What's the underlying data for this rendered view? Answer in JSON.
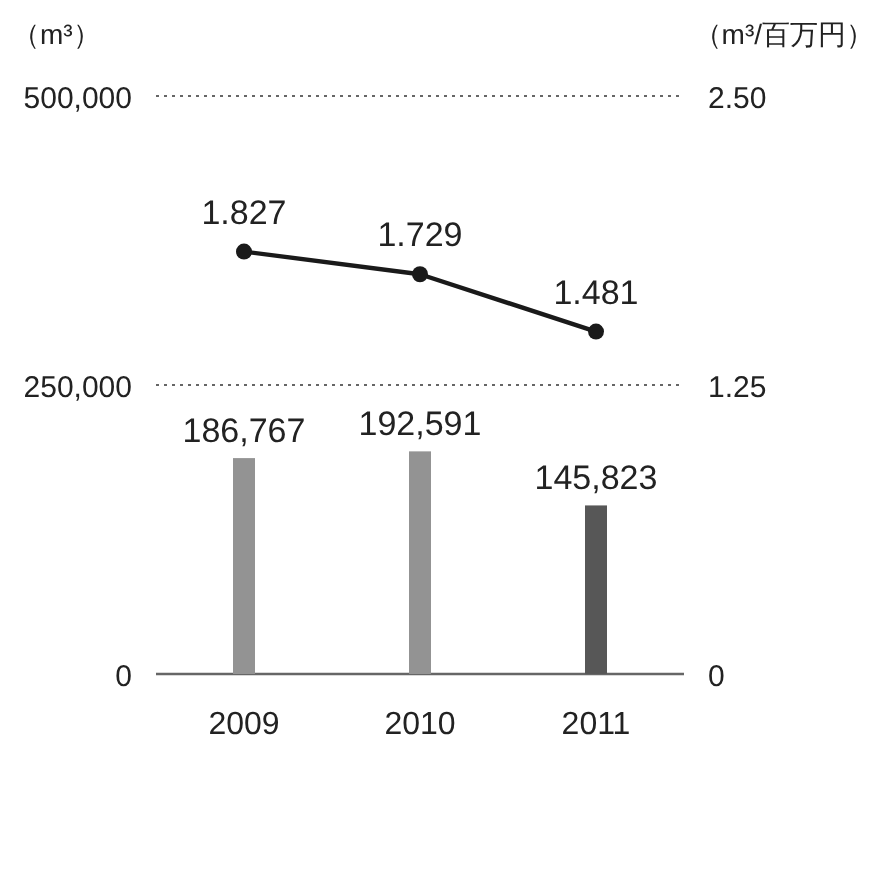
{
  "chart_data": {
    "type": "bar",
    "ylabel": "（m³）",
    "y2label": "（m³/百万円）",
    "categories": [
      "2009",
      "2010",
      "2011"
    ],
    "series": [
      {
        "colors": [
          "#939393",
          "#939393",
          "#575757"
        ],
        "values": [
          186767,
          192591,
          145823
        ],
        "value_labels": [
          "186,767",
          "192,591",
          "145,823"
        ]
      },
      {
        "type": "line",
        "axis": "y2",
        "color": "#1a1a1a",
        "marker": "circle",
        "values": [
          1.827,
          1.729,
          1.481
        ],
        "value_labels": [
          "1.827",
          "1.729",
          "1.481"
        ]
      }
    ],
    "ylim": [
      0,
      500000
    ],
    "yticks": [
      0,
      {
        "value": 250000,
        "label": "250,000"
      },
      {
        "value": 500000,
        "label": "500,000"
      }
    ],
    "y2lim": [
      0,
      2.5
    ],
    "y2ticks": [
      0,
      {
        "value": 1.25,
        "label": "1.25"
      },
      {
        "value": 2.5,
        "label": "2.50"
      }
    ],
    "grid": "y"
  }
}
